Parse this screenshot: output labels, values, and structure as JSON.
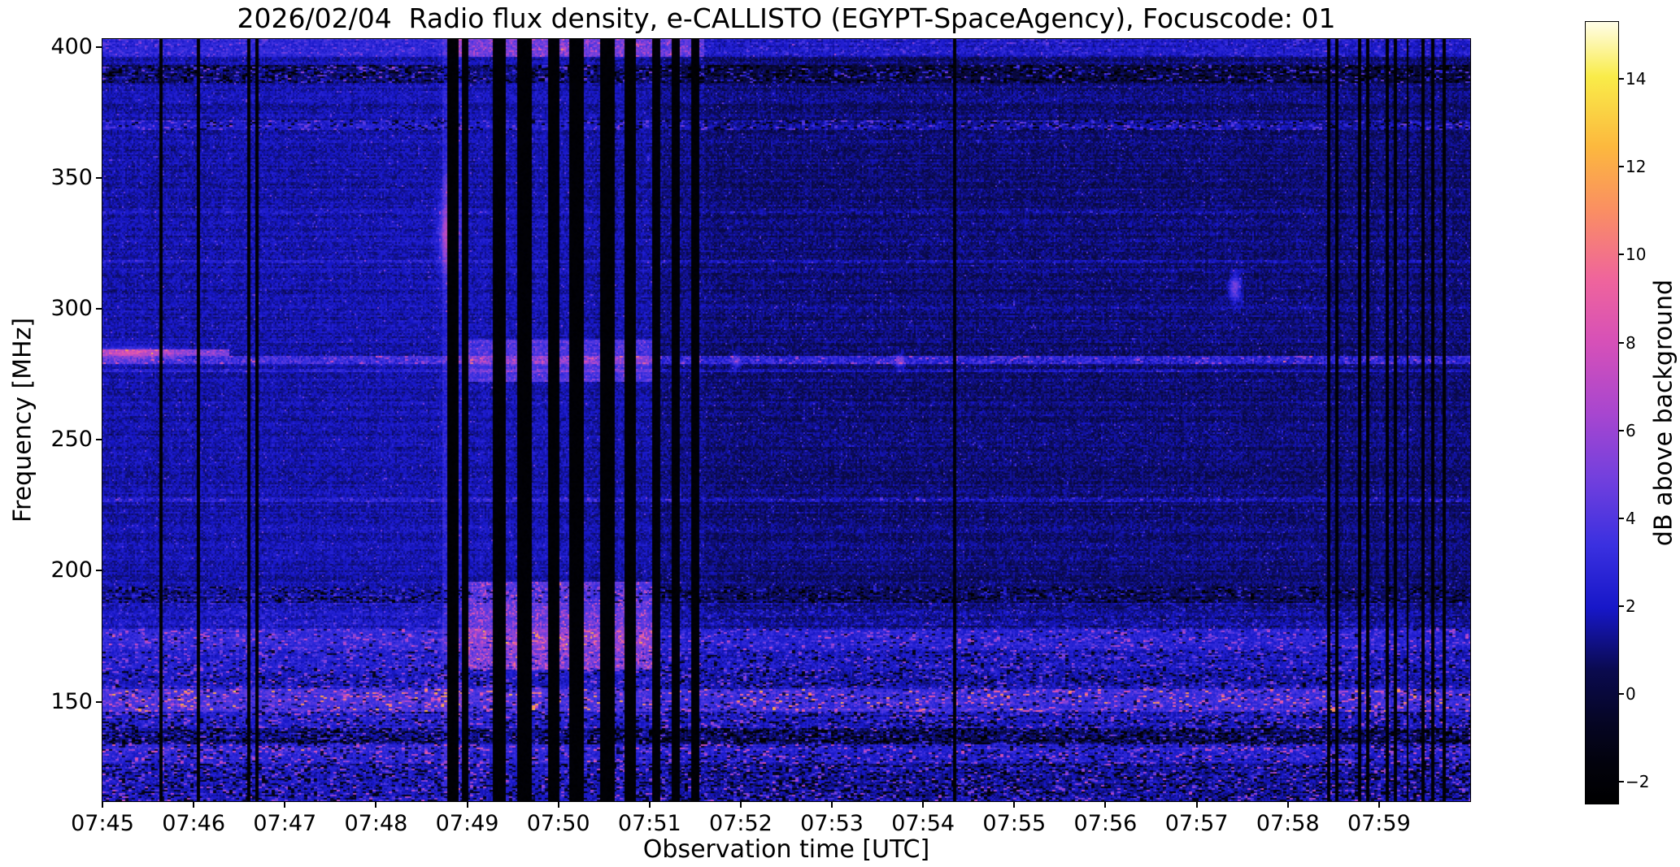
{
  "chart_data": {
    "type": "heatmap",
    "title": "2026/02/04  Radio flux density, e-CALLISTO (EGYPT-SpaceAgency), Focuscode: 01",
    "xlabel": "Observation time [UTC]",
    "ylabel": "Frequency [MHz]",
    "colorbar_label": "dB above background",
    "grid": false,
    "x_range_min": [
      0,
      15
    ],
    "x_tick_minutes": [
      0,
      1,
      2,
      3,
      4,
      5,
      6,
      7,
      8,
      9,
      10,
      11,
      12,
      13,
      14
    ],
    "x_tick_labels": [
      "07:45",
      "07:46",
      "07:47",
      "07:48",
      "07:49",
      "07:50",
      "07:51",
      "07:52",
      "07:53",
      "07:54",
      "07:55",
      "07:56",
      "07:57",
      "07:58",
      "07:59"
    ],
    "y_range_mhz": [
      112,
      403
    ],
    "y_ticks_mhz": [
      400,
      350,
      300,
      250,
      200,
      150
    ],
    "value_range_db": [
      -2.5,
      15.3
    ],
    "colorbar_ticks_db": [
      -2,
      0,
      2,
      4,
      6,
      8,
      10,
      12,
      14
    ],
    "colorbar_tick_labels": [
      "−2",
      "0",
      "2",
      "4",
      "6",
      "8",
      "10",
      "12",
      "14"
    ],
    "colormap": [
      {
        "p": 0.0,
        "c": "#000000"
      },
      {
        "p": 0.05,
        "c": "#02020c"
      },
      {
        "p": 0.1,
        "c": "#050522"
      },
      {
        "p": 0.17,
        "c": "#0a0a4e"
      },
      {
        "p": 0.25,
        "c": "#1717c8"
      },
      {
        "p": 0.33,
        "c": "#3a30e0"
      },
      {
        "p": 0.42,
        "c": "#7540dd"
      },
      {
        "p": 0.5,
        "c": "#a846cf"
      },
      {
        "p": 0.59,
        "c": "#d650b8"
      },
      {
        "p": 0.67,
        "c": "#ef649c"
      },
      {
        "p": 0.76,
        "c": "#fa8f62"
      },
      {
        "p": 0.84,
        "c": "#fcb83e"
      },
      {
        "p": 0.93,
        "c": "#f9ec49"
      },
      {
        "p": 1.0,
        "c": "#fffde8"
      }
    ],
    "render": {
      "seed": 20260204,
      "base_db": 1.25,
      "noise_db": 0.75,
      "row_stripe_db": 0.35,
      "col_stripe_db": 0.15,
      "regions": [
        {
          "t": [
            0,
            3.86
          ],
          "f": [
            112,
            403
          ],
          "dv": 0.45
        },
        {
          "t": [
            6.6,
            15
          ],
          "f": [
            178,
            403
          ],
          "dv": -0.25
        }
      ],
      "bands": [
        {
          "f": [
            396,
            403
          ],
          "dv": 1.1,
          "speckle": 1.2,
          "dark": 0
        },
        {
          "f": [
            386,
            393
          ],
          "dv": -0.7,
          "speckle": 2.2,
          "dark": 0.22
        },
        {
          "f": [
            368,
            372
          ],
          "dv": 0.5,
          "speckle": 1.8,
          "dark": 0.12
        },
        {
          "f": [
            188,
            194
          ],
          "dv": -0.4,
          "speckle": 1.4,
          "dark": 0.18
        },
        {
          "f": [
            178,
            188
          ],
          "dv": 0.25,
          "speckle": 1.0,
          "dark": 0
        },
        {
          "f": [
            170,
            178
          ],
          "dv": 1.3,
          "speckle": 2.4,
          "dark": 0.05
        },
        {
          "f": [
            163,
            170
          ],
          "dv": 0.7,
          "speckle": 2.0,
          "dark": 0.1
        },
        {
          "f": [
            155,
            163
          ],
          "dv": 0.5,
          "speckle": 2.2,
          "dark": 0.14
        },
        {
          "f": [
            146,
            155
          ],
          "dv": 2.0,
          "speckle": 4.2,
          "dark": 0.1
        },
        {
          "f": [
            140,
            146
          ],
          "dv": 0.7,
          "speckle": 2.4,
          "dark": 0.2
        },
        {
          "f": [
            134,
            140
          ],
          "dv": -0.5,
          "speckle": 2.0,
          "dark": 0.3
        },
        {
          "f": [
            126,
            134
          ],
          "dv": 1.0,
          "speckle": 3.0,
          "dark": 0.15
        },
        {
          "f": [
            112,
            126
          ],
          "dv": 0.3,
          "speckle": 2.6,
          "dark": 0.25
        }
      ],
      "h_lines": [
        {
          "f": 280.5,
          "hw": 1.6,
          "dv": 2.0,
          "speckle": 2.4,
          "t": [
            0,
            15
          ]
        },
        {
          "f": 283.5,
          "hw": 1.2,
          "dv": 3.8,
          "speckle": 2.0,
          "t": [
            0,
            1.4
          ]
        },
        {
          "f": 276.5,
          "hw": 0.8,
          "dv": 0.8,
          "speckle": 0.8,
          "t": [
            0,
            15
          ]
        },
        {
          "f": 227,
          "hw": 1.0,
          "dv": 0.7,
          "speckle": 1.5,
          "t": [
            0,
            15
          ]
        },
        {
          "f": 318,
          "hw": 0.8,
          "dv": 0.6,
          "speckle": 0.8,
          "t": [
            0,
            15
          ]
        },
        {
          "f": 337,
          "hw": 0.8,
          "dv": 0.4,
          "speckle": 0.6,
          "t": [
            0,
            15
          ]
        },
        {
          "f": 205,
          "hw": 0.8,
          "dv": 0.4,
          "speckle": 0.7,
          "t": [
            0,
            15
          ]
        },
        {
          "f": 252,
          "hw": 0.7,
          "dv": 0.35,
          "speckle": 0.6,
          "t": [
            6.5,
            15
          ]
        },
        {
          "f": 300,
          "hw": 0.7,
          "dv": 0.35,
          "speckle": 0.6,
          "t": [
            6.5,
            15
          ]
        }
      ],
      "v_gaps": [
        [
          0.63,
          0.66
        ],
        [
          1.04,
          1.07
        ],
        [
          1.59,
          1.62
        ],
        [
          1.68,
          1.71
        ],
        [
          3.78,
          3.9
        ],
        [
          3.94,
          4.02
        ],
        [
          4.28,
          4.42
        ],
        [
          4.55,
          4.7
        ],
        [
          4.88,
          5.02
        ],
        [
          5.12,
          5.28
        ],
        [
          5.46,
          5.62
        ],
        [
          5.72,
          5.85
        ],
        [
          6.02,
          6.12
        ],
        [
          6.24,
          6.34
        ],
        [
          6.46,
          6.54
        ],
        [
          9.33,
          9.36
        ],
        [
          13.43,
          13.46
        ],
        [
          13.52,
          13.55
        ],
        [
          13.77,
          13.8
        ],
        [
          13.86,
          13.89
        ],
        [
          14.07,
          14.1
        ],
        [
          14.16,
          14.19
        ],
        [
          14.3,
          14.33
        ],
        [
          14.47,
          14.5
        ],
        [
          14.57,
          14.6
        ],
        [
          14.7,
          14.73
        ]
      ],
      "v_bright": [
        {
          "t": [
            3.72,
            3.78
          ],
          "f": [
            112,
            403
          ],
          "dv": 1.0
        },
        {
          "t": [
            3.9,
            3.94
          ],
          "f": [
            112,
            403
          ],
          "dv": 1.4
        },
        {
          "t": [
            4.02,
            4.28
          ],
          "f": [
            112,
            403
          ],
          "dv": 0.5
        },
        {
          "t": [
            4.42,
            4.55
          ],
          "f": [
            112,
            403
          ],
          "dv": 0.6
        },
        {
          "t": [
            4.7,
            4.88
          ],
          "f": [
            112,
            403
          ],
          "dv": 0.5
        },
        {
          "t": [
            5.02,
            5.12
          ],
          "f": [
            112,
            403
          ],
          "dv": 0.6
        },
        {
          "t": [
            5.28,
            5.46
          ],
          "f": [
            112,
            403
          ],
          "dv": 0.4
        },
        {
          "t": [
            5.62,
            5.72
          ],
          "f": [
            112,
            403
          ],
          "dv": 0.5
        },
        {
          "t": [
            5.85,
            6.02
          ],
          "f": [
            112,
            403
          ],
          "dv": 0.3
        },
        {
          "t": [
            4.02,
            6.02
          ],
          "f": [
            162,
            196
          ],
          "dv": 2.2,
          "speckle": 2.2
        },
        {
          "t": [
            4.02,
            6.02
          ],
          "f": [
            272,
            288
          ],
          "dv": 2.0,
          "speckle": 1.0
        },
        {
          "t": [
            3.86,
            6.6
          ],
          "f": [
            396,
            403
          ],
          "dv": 1.8,
          "speckle": 1.5
        }
      ],
      "blobs": [
        {
          "t": 3.8,
          "f": 328,
          "dt": 0.1,
          "df": 14,
          "dv": 4.5
        },
        {
          "t": 3.8,
          "f": 348,
          "dt": 0.06,
          "df": 6,
          "dv": 2.0
        },
        {
          "t": 12.42,
          "f": 308,
          "dt": 0.06,
          "df": 5,
          "dv": 4.0
        },
        {
          "t": 0.3,
          "f": 283,
          "dt": 0.45,
          "df": 3,
          "dv": 2.5
        },
        {
          "t": 8.75,
          "f": 280,
          "dt": 0.05,
          "df": 3,
          "dv": 3.0
        },
        {
          "t": 6.95,
          "f": 280,
          "dt": 0.05,
          "df": 3,
          "dv": 2.5
        }
      ]
    }
  }
}
